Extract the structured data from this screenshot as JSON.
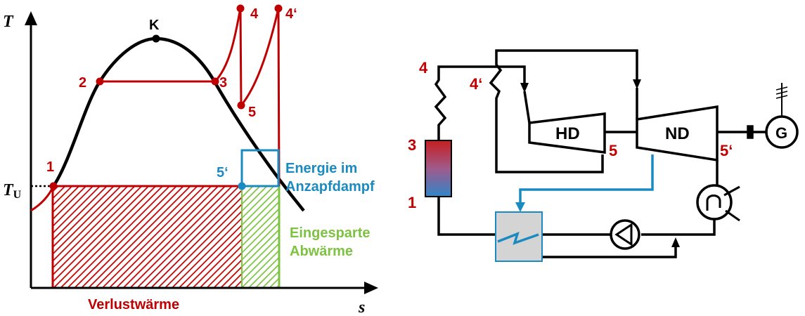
{
  "ts_diagram": {
    "axis_y": "T",
    "axis_x": "s",
    "tu_main": "T",
    "tu_sub": "U",
    "points": {
      "k": "K",
      "p1": "1",
      "p2": "2",
      "p3": "3",
      "p4": "4",
      "p4p": "4‘",
      "p5": "5",
      "p5p": "5‘"
    },
    "labels": {
      "energy_line1": "Energie im",
      "energy_line2": "Anzapfdampf",
      "saved_line1": "Eingesparte",
      "saved_line2": "Abwärme",
      "loss": "Verlustwärme"
    }
  },
  "plant_schematic": {
    "labels": {
      "p4": "4",
      "p4p": "4‘",
      "p3": "3",
      "p1": "1",
      "hd": "HD",
      "nd": "ND",
      "p5": "5",
      "p5p": "5‘",
      "generator": "G"
    }
  },
  "colors": {
    "process_red": "#c00000",
    "curve_black": "#000000",
    "bleed_blue": "#1a8ac0",
    "saved_green": "#7ec242",
    "heater_gray": "#d4d4d4"
  }
}
